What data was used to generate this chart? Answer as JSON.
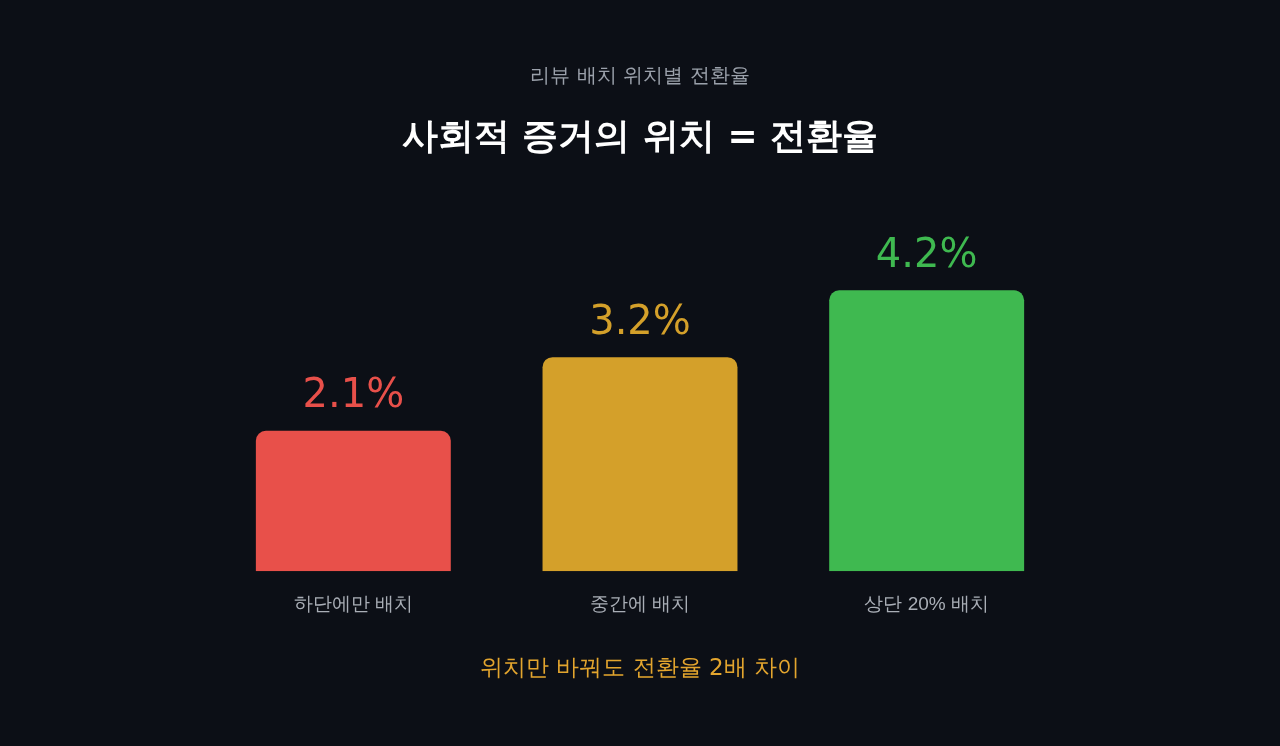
{
  "chart_data": {
    "type": "bar",
    "subtitle": "리뷰 배치 위치별 전환율",
    "title": "사회적 증거의 위치 = 전환율",
    "categories": [
      "하단에만 배치",
      "중간에 배치",
      "상단 20% 배치"
    ],
    "values": [
      2.1,
      3.2,
      4.2
    ],
    "colors": [
      "#e8504a",
      "#d4a02a",
      "#3fb950"
    ],
    "value_labels": [
      "2.1%",
      "3.2%",
      "4.2%"
    ],
    "annotations": [
      "위치만 바꿔도 전환율 2배 차이"
    ]
  }
}
